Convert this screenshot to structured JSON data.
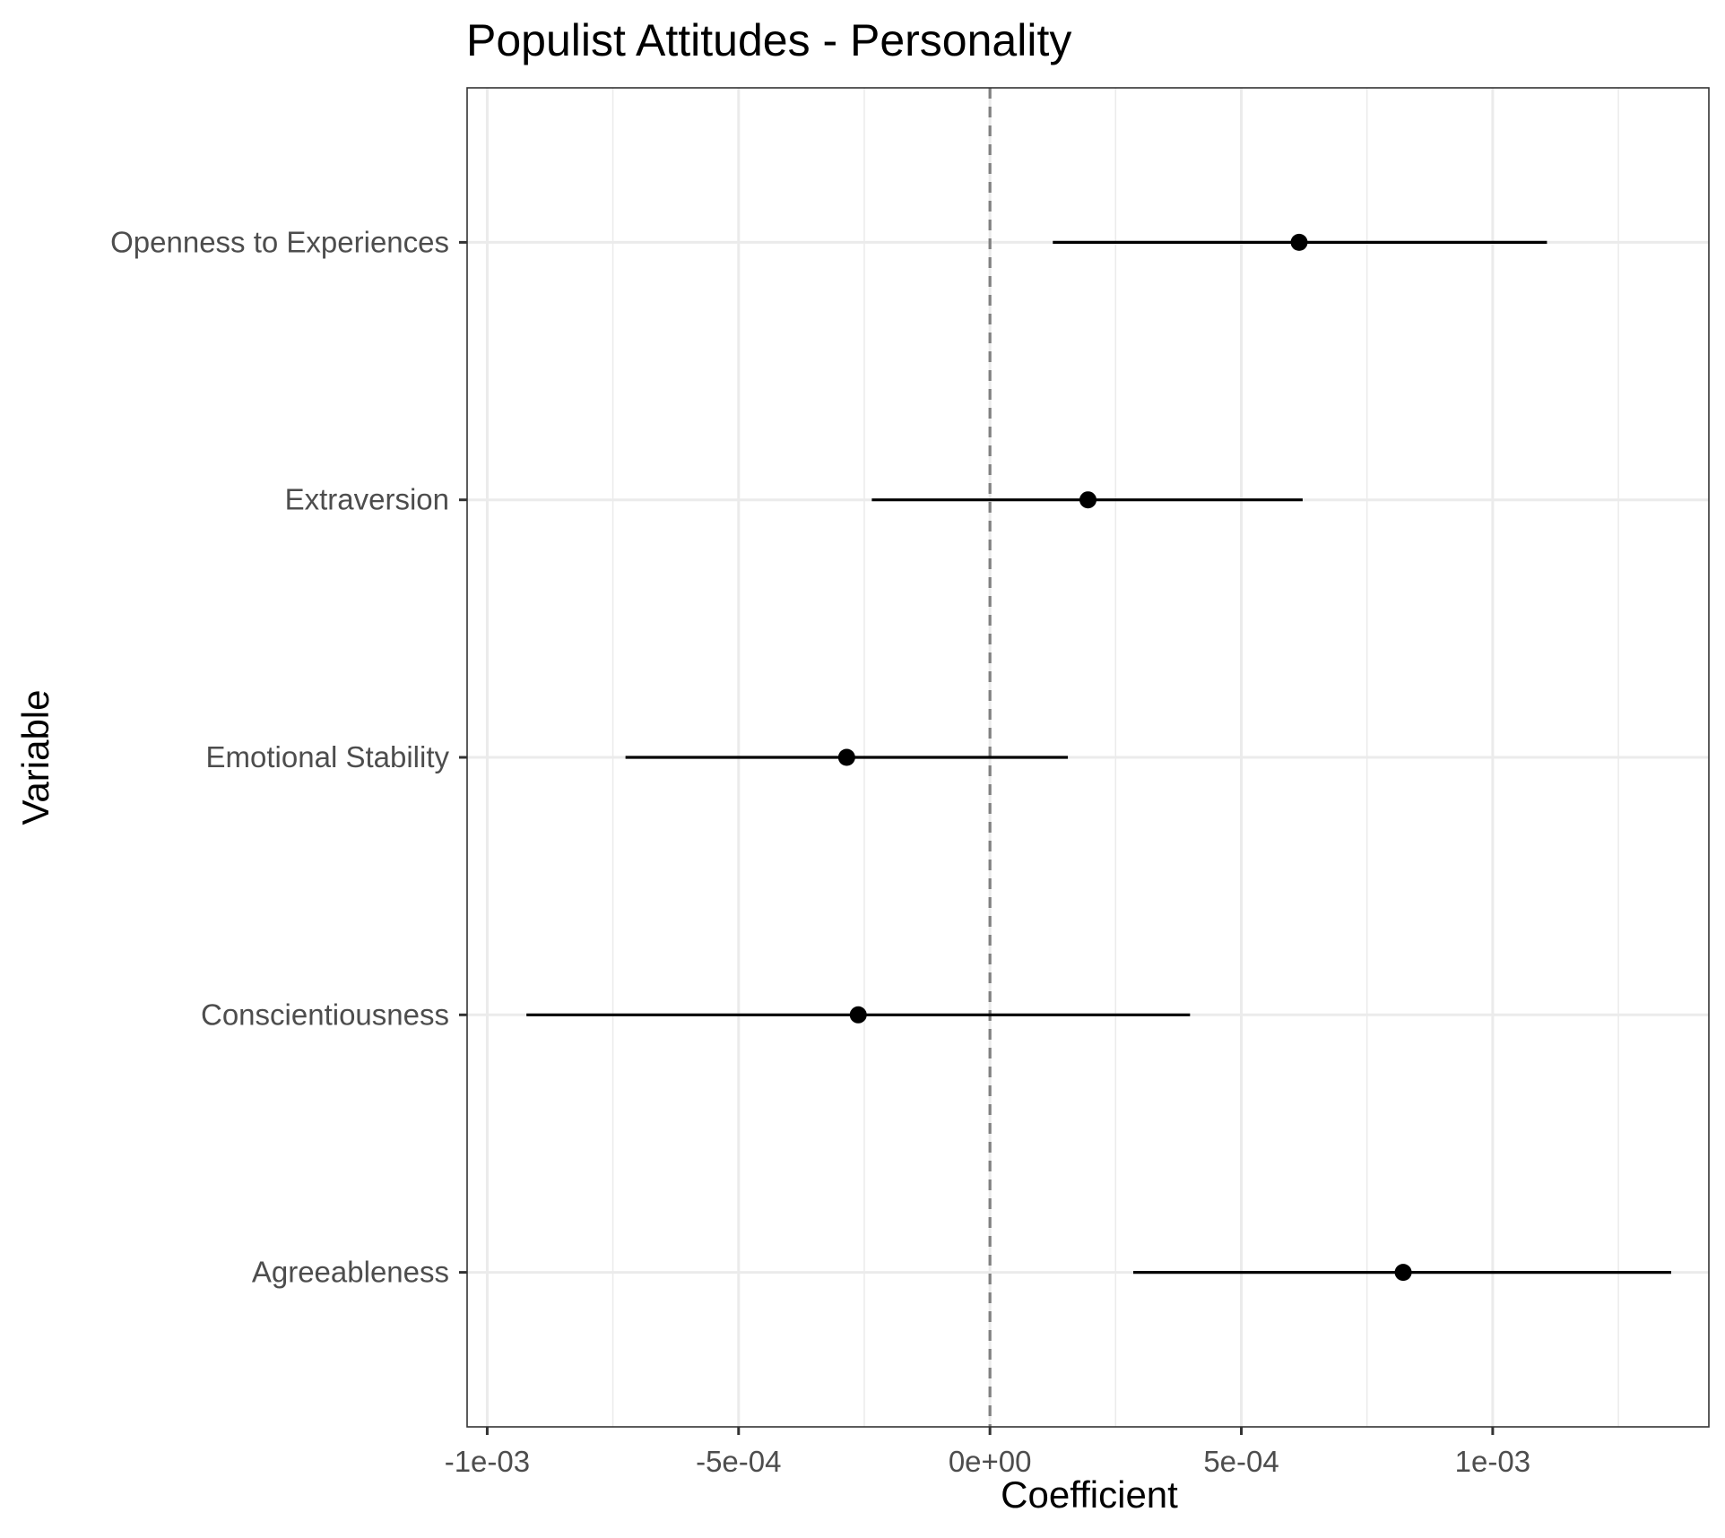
{
  "chart_data": {
    "type": "scatter",
    "title": "Populist Attitudes - Personality",
    "xlabel": "Coefficient",
    "ylabel": "Variable",
    "xlim": [
      -0.00104,
      0.00143
    ],
    "x_ticks": [
      {
        "value": -0.001,
        "label": "-1e-03"
      },
      {
        "value": -0.0005,
        "label": "-5e-04"
      },
      {
        "value": 0,
        "label": "0e+00"
      },
      {
        "value": 0.0005,
        "label": "5e-04"
      },
      {
        "value": 0.001,
        "label": "1e-03"
      }
    ],
    "x_minor_ticks": [
      -0.00075,
      -0.00025,
      0.00025,
      0.00075,
      0.00125
    ],
    "reference_line": {
      "x": 0,
      "style": "dashed",
      "color": "#808080"
    },
    "grid": true,
    "point_color": "#000000",
    "categories": [
      "Openness to Experiences",
      "Extraversion",
      "Emotional Stability",
      "Conscientiousness",
      "Agreeableness"
    ],
    "estimates": [
      0.000615,
      0.000195,
      -0.000285,
      -0.000262,
      0.000822
    ],
    "ci_low": [
      0.000125,
      -0.000235,
      -0.000725,
      -0.000922,
      0.000285
    ],
    "ci_high": [
      0.001108,
      0.000622,
      0.000155,
      0.000398,
      0.001355
    ]
  }
}
